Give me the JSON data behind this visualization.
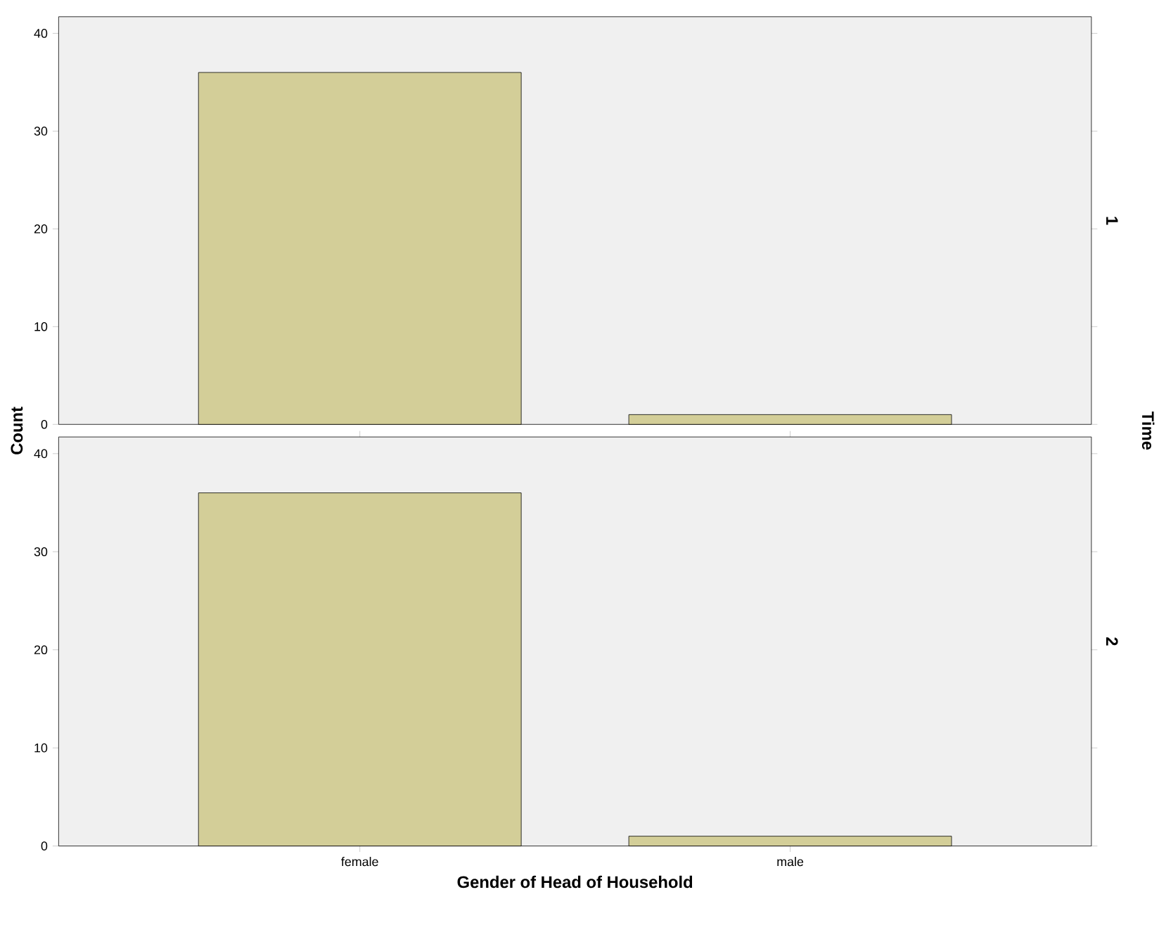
{
  "chart_data": [
    {
      "type": "bar",
      "categories": [
        null,
        null
      ],
      "values": [
        36,
        1
      ],
      "color": "#d3ce98",
      "ylim": [
        0,
        41.7
      ],
      "yticks": [
        0,
        10,
        20,
        30,
        40
      ],
      "y2label": "1",
      "tick_labels": "y"
    },
    {
      "type": "bar",
      "categories": [
        "female",
        "male"
      ],
      "values": [
        36,
        1
      ],
      "color": "#d3ce98",
      "ylim": [
        0,
        41.7
      ],
      "yticks": [
        0,
        10,
        20,
        30,
        40
      ],
      "y2label": "2",
      "xlabel": "Gender of Head of Household",
      "ylabel": "Count",
      "annotations": [
        "Time"
      ]
    }
  ]
}
